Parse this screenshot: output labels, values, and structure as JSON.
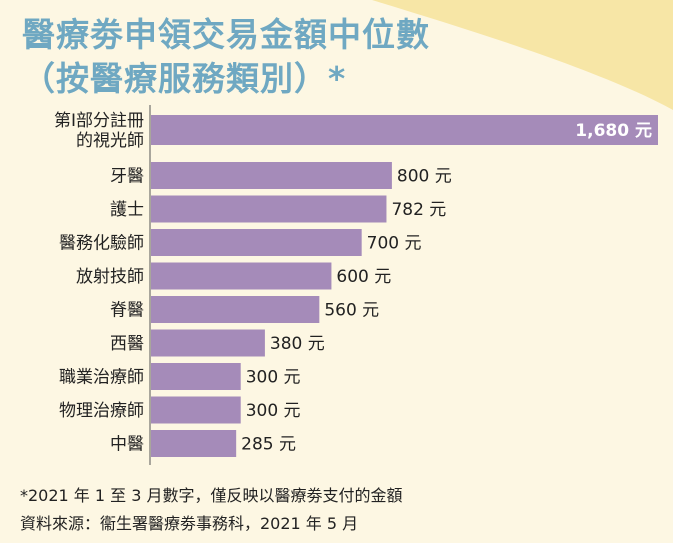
{
  "title": {
    "line1": "醫療劵申領交易金額中位數",
    "line2": "（按醫療服務類別）*"
  },
  "colors": {
    "bar": "#a58bb9",
    "title": "#6fa8c2",
    "background": "#fdf7e3",
    "wave": "#f7e6a6"
  },
  "chart_data": {
    "type": "bar",
    "orientation": "horizontal",
    "categories": [
      [
        "第Ⅰ部分註冊",
        "的視光師"
      ],
      [
        "牙醫"
      ],
      [
        "護士"
      ],
      [
        "醫務化驗師"
      ],
      [
        "放射技師"
      ],
      [
        "脊醫"
      ],
      [
        "西醫"
      ],
      [
        "職業治療師"
      ],
      [
        "物理治療師"
      ],
      [
        "中醫"
      ]
    ],
    "values": [
      1680,
      800,
      782,
      700,
      600,
      560,
      380,
      300,
      300,
      285
    ],
    "value_labels": [
      "1,680 元",
      "800 元",
      "782 元",
      "700 元",
      "600 元",
      "560 元",
      "380 元",
      "300 元",
      "300 元",
      "285 元"
    ],
    "xlim": [
      0,
      1680
    ],
    "grid": false
  },
  "footnotes": {
    "line1": "*2021 年 1 至 3 月數字，僅反映以醫療劵支付的金額",
    "line2": "資料來源：衞生署醫療劵事務科，2021 年 5 月"
  }
}
